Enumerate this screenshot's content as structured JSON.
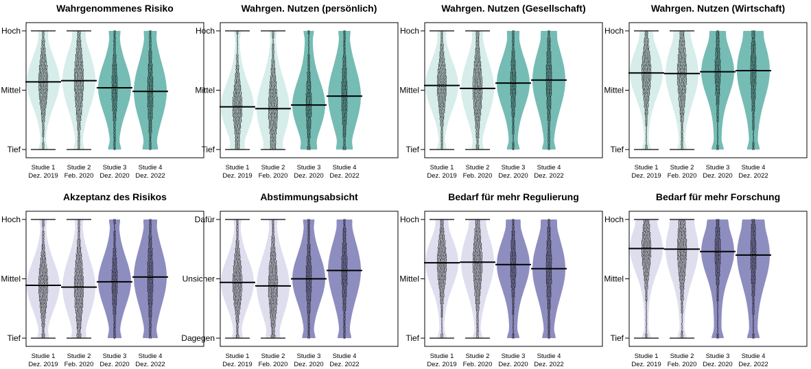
{
  "colors": {
    "teal_light": "#d6edea",
    "teal_dark": "#75bcb5",
    "purple_light": "#dedeef",
    "purple_dark": "#8e8dbf",
    "marker": "#000000"
  },
  "x_labels": [
    {
      "line1": "Studie 1",
      "line2": "Dez. 2019"
    },
    {
      "line1": "Studie 2",
      "line2": "Feb. 2020"
    },
    {
      "line1": "Studie 3",
      "line2": "Dez. 2020"
    },
    {
      "line1": "Studie 4",
      "line2": "Dez. 2022"
    }
  ],
  "chart_data": [
    {
      "type": "violin",
      "title": "Wahrgenommenes Risiko",
      "palette": "teal",
      "yticks": [
        "Tief",
        "Mittel",
        "Hoch"
      ],
      "ylim": [
        0,
        1
      ],
      "means": [
        0.57,
        0.58,
        0.52,
        0.49
      ]
    },
    {
      "type": "violin",
      "title": "Wahrgen. Nutzen (persönlich)",
      "palette": "teal",
      "yticks": [
        "Tief",
        "Mittel",
        "Hoch"
      ],
      "ylim": [
        0,
        1
      ],
      "means": [
        0.36,
        0.345,
        0.375,
        0.45
      ]
    },
    {
      "type": "violin",
      "title": "Wahrgen. Nutzen (Gesellschaft)",
      "palette": "teal",
      "yticks": [
        "Tief",
        "Mittel",
        "Hoch"
      ],
      "ylim": [
        0,
        1
      ],
      "means": [
        0.54,
        0.515,
        0.56,
        0.585
      ]
    },
    {
      "type": "violin",
      "title": "Wahrgen. Nutzen (Wirtschaft)",
      "palette": "teal",
      "yticks": [
        "Tief",
        "Mittel",
        "Hoch"
      ],
      "ylim": [
        0,
        1
      ],
      "means": [
        0.645,
        0.64,
        0.655,
        0.665
      ]
    },
    {
      "type": "violin",
      "title": "Akzeptanz des Risikos",
      "palette": "purple",
      "yticks": [
        "Tief",
        "Mittel",
        "Hoch"
      ],
      "ylim": [
        0,
        1
      ],
      "means": [
        0.445,
        0.43,
        0.475,
        0.515
      ]
    },
    {
      "type": "violin",
      "title": "Abstimmungsabsicht",
      "palette": "purple",
      "yticks": [
        "Dagegen",
        "Unsicher",
        "Dafür"
      ],
      "ylim": [
        0,
        1
      ],
      "means": [
        0.47,
        0.44,
        0.5,
        0.57
      ]
    },
    {
      "type": "violin",
      "title": "Bedarf für mehr Regulierung",
      "palette": "purple",
      "yticks": [
        "Tief",
        "Mittel",
        "Hoch"
      ],
      "ylim": [
        0,
        1
      ],
      "means": [
        0.635,
        0.64,
        0.62,
        0.585
      ]
    },
    {
      "type": "violin",
      "title": "Bedarf für mehr Forschung",
      "palette": "purple",
      "yticks": [
        "Tief",
        "Mittel",
        "Hoch"
      ],
      "ylim": [
        0,
        1
      ],
      "means": [
        0.755,
        0.75,
        0.73,
        0.7
      ]
    }
  ]
}
